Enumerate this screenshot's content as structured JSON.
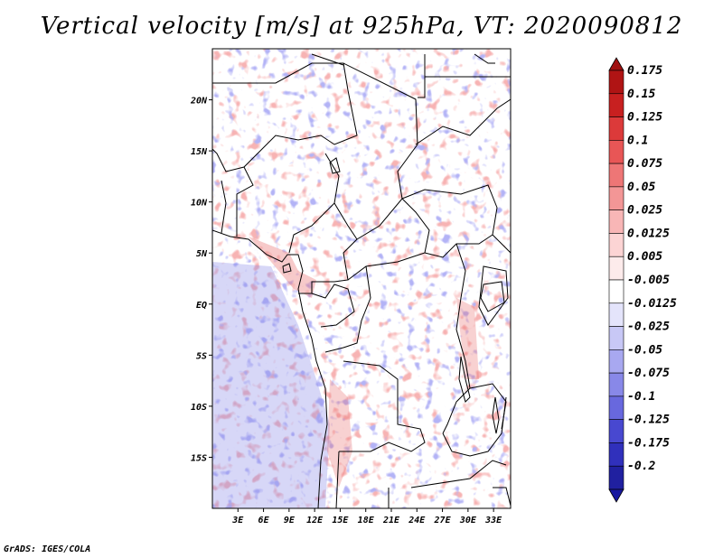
{
  "title": "Vertical velocity [m/s] at 925hPa, VT: 2020090812",
  "footer": "GrADS: IGES/COLA",
  "map": {
    "lon_range": [
      0,
      35
    ],
    "lat_range": [
      -20,
      25
    ],
    "lat_ticks": [
      {
        "value": 20,
        "label": "20N"
      },
      {
        "value": 15,
        "label": "15N"
      },
      {
        "value": 10,
        "label": "10N"
      },
      {
        "value": 5,
        "label": "5N"
      },
      {
        "value": 0,
        "label": "EQ"
      },
      {
        "value": -5,
        "label": "5S"
      },
      {
        "value": -10,
        "label": "10S"
      },
      {
        "value": -15,
        "label": "15S"
      }
    ],
    "lon_ticks": [
      {
        "value": 3,
        "label": "3E"
      },
      {
        "value": 6,
        "label": "6E"
      },
      {
        "value": 9,
        "label": "9E"
      },
      {
        "value": 12,
        "label": "12E"
      },
      {
        "value": 15,
        "label": "15E"
      },
      {
        "value": 18,
        "label": "18E"
      },
      {
        "value": 21,
        "label": "21E"
      },
      {
        "value": 24,
        "label": "24E"
      },
      {
        "value": 27,
        "label": "27E"
      },
      {
        "value": 30,
        "label": "30E"
      },
      {
        "value": 33,
        "label": "33E"
      }
    ]
  },
  "colorbar": {
    "levels": [
      {
        "label": "0.175",
        "color": "#b01414"
      },
      {
        "label": "0.15",
        "color": "#c82020"
      },
      {
        "label": "0.125",
        "color": "#dc3a3a"
      },
      {
        "label": "0.1",
        "color": "#e85656"
      },
      {
        "label": "0.075",
        "color": "#ee7676"
      },
      {
        "label": "0.05",
        "color": "#f39696"
      },
      {
        "label": "0.025",
        "color": "#f8b6b6"
      },
      {
        "label": "0.0125",
        "color": "#fcd4d4"
      },
      {
        "label": "0.005",
        "color": "#fdebeb"
      },
      {
        "label": "-0.005",
        "color": "#ffffff"
      },
      {
        "label": "-0.0125",
        "color": "#e4e4fb"
      },
      {
        "label": "-0.025",
        "color": "#c8c8f6"
      },
      {
        "label": "-0.05",
        "color": "#a8a8f0"
      },
      {
        "label": "-0.075",
        "color": "#8888e8"
      },
      {
        "label": "-0.1",
        "color": "#6868de"
      },
      {
        "label": "-0.125",
        "color": "#4848d0"
      },
      {
        "label": "-0.175",
        "color": "#3030bc"
      },
      {
        "label": "-0.2",
        "color": "#2020a0"
      }
    ],
    "top_triangle_color": "#a01010",
    "bottom_triangle_color": "#1818a0"
  }
}
